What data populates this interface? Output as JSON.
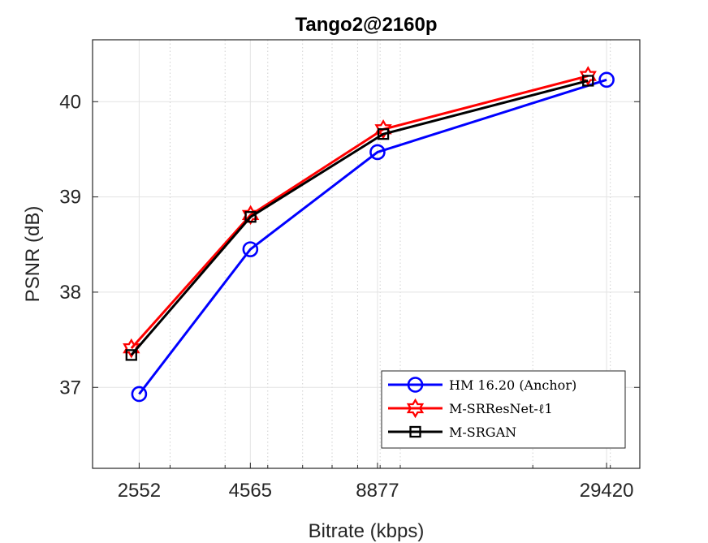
{
  "chart_data": {
    "type": "line",
    "title": "Tango2@2160p",
    "xlabel": "Bitrate (kbps)",
    "ylabel": "PSNR (dB)",
    "x_scale": "log",
    "xlim": [
      2000,
      35000
    ],
    "ylim": [
      36.15,
      40.65
    ],
    "x_ticks": [
      2552,
      4565,
      8877,
      29420
    ],
    "x_tick_labels": [
      "2552",
      "4565",
      "8877",
      "29420"
    ],
    "y_ticks": [
      37,
      38,
      39,
      40
    ],
    "y_tick_labels": [
      "37",
      "38",
      "39",
      "40"
    ],
    "grid": true,
    "legend_position": "bottom-right",
    "series": [
      {
        "name": "HM 16.20 (Anchor)",
        "color": "#0000ff",
        "marker": "circle",
        "x": [
          2552,
          4565,
          8877,
          29420
        ],
        "y": [
          36.93,
          38.45,
          39.47,
          40.23
        ]
      },
      {
        "name": "M-SRResNet-ℓ1",
        "color": "#ff0000",
        "marker": "hexagram",
        "x": [
          2450,
          4570,
          9150,
          26700
        ],
        "y": [
          37.41,
          38.81,
          39.71,
          40.27
        ]
      },
      {
        "name": "M-SRGAN",
        "color": "#000000",
        "marker": "square",
        "x": [
          2450,
          4570,
          9150,
          26700
        ],
        "y": [
          37.34,
          38.79,
          39.66,
          40.22
        ]
      }
    ]
  }
}
